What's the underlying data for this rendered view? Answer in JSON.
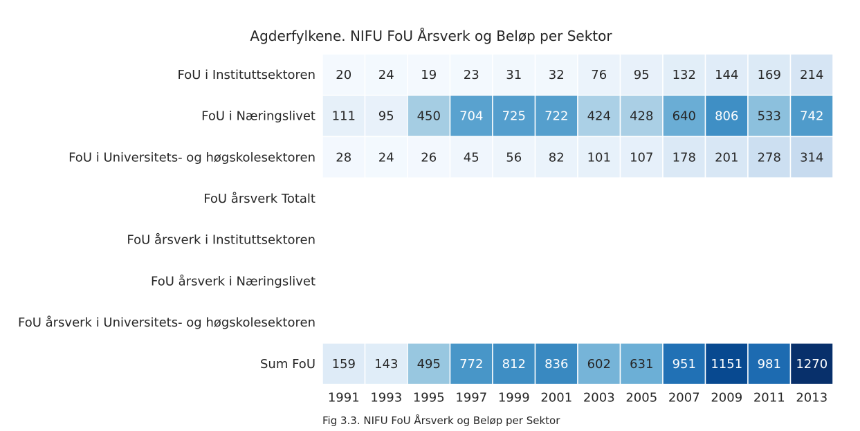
{
  "chart_data": {
    "type": "heatmap",
    "title": "Agderfylkene. NIFU FoU Årsverk og Beløp per Sektor",
    "caption": "Fig 3.3. NIFU FoU Årsverk og Beløp per Sektor",
    "colormap": "Blues",
    "cmap_range": [
      0,
      1270
    ],
    "x": [
      "1991",
      "1993",
      "1995",
      "1997",
      "1999",
      "2001",
      "2003",
      "2005",
      "2007",
      "2009",
      "2011",
      "2013"
    ],
    "y": [
      "FoU i Instituttsektoren",
      "FoU i Næringslivet",
      "FoU i Universitets- og høgskolesektoren",
      "FoU årsverk Totalt",
      "FoU årsverk i Instituttsektoren",
      "FoU årsverk i Næringslivet",
      "FoU årsverk i Universitets- og høgskolesektoren",
      "Sum FoU"
    ],
    "values": [
      [
        20,
        24,
        19,
        23,
        31,
        32,
        76,
        95,
        132,
        144,
        169,
        214
      ],
      [
        111,
        95,
        450,
        704,
        725,
        722,
        424,
        428,
        640,
        806,
        533,
        742
      ],
      [
        28,
        24,
        26,
        45,
        56,
        82,
        101,
        107,
        178,
        201,
        278,
        314
      ],
      [
        null,
        null,
        null,
        null,
        null,
        null,
        null,
        null,
        null,
        null,
        null,
        null
      ],
      [
        null,
        null,
        null,
        null,
        null,
        null,
        null,
        null,
        null,
        null,
        null,
        null
      ],
      [
        null,
        null,
        null,
        null,
        null,
        null,
        null,
        null,
        null,
        null,
        null,
        null
      ],
      [
        null,
        null,
        null,
        null,
        null,
        null,
        null,
        null,
        null,
        null,
        null,
        null
      ],
      [
        159,
        143,
        495,
        772,
        812,
        836,
        602,
        631,
        951,
        1151,
        981,
        1270
      ]
    ]
  }
}
